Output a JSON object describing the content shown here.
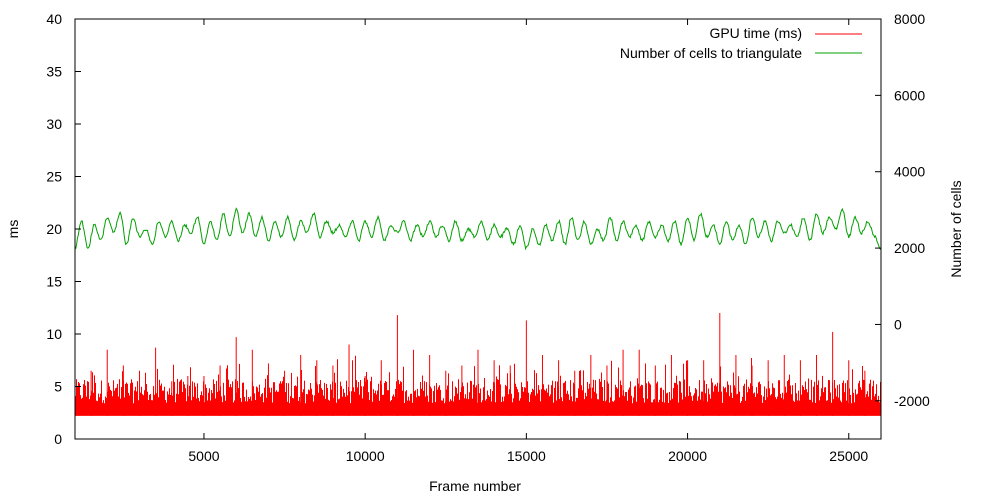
{
  "chart_data": {
    "type": "line",
    "title": "",
    "xlabel": "Frame number",
    "ylabel_left": "ms",
    "ylabel_right": "Number of cells",
    "xlim": [
      1000,
      26000
    ],
    "ylim_left": [
      0,
      40
    ],
    "ylim_right": [
      -3000,
      8000
    ],
    "x_ticks": [
      5000,
      10000,
      15000,
      20000,
      25000
    ],
    "y_ticks_left": [
      0,
      5,
      10,
      15,
      20,
      25,
      30,
      35,
      40
    ],
    "y_ticks_right": [
      -2000,
      0,
      2000,
      4000,
      6000,
      8000
    ],
    "grid": false,
    "legend_position": "top-right",
    "series": [
      {
        "name": "GPU time (ms)",
        "color": "#ff0000",
        "axis": "left",
        "baseline_ms": 2.2,
        "typical_upper_ms": 5.5,
        "x": [
          1000,
          1500,
          2000,
          2500,
          3000,
          3500,
          4000,
          4500,
          5000,
          5500,
          6000,
          6500,
          7000,
          7500,
          8000,
          8500,
          9000,
          9500,
          10000,
          10500,
          11000,
          11500,
          12000,
          12500,
          13000,
          13500,
          14000,
          14500,
          15000,
          15500,
          16000,
          16500,
          17000,
          17500,
          18000,
          18500,
          19000,
          19500,
          20000,
          20500,
          21000,
          21500,
          22000,
          22500,
          23000,
          23500,
          24000,
          24500,
          25000,
          25500,
          26000
        ],
        "y": [
          5.5,
          6.5,
          8.5,
          7.0,
          6.5,
          8.7,
          5.5,
          6.0,
          6.0,
          7.0,
          9.7,
          8.5,
          7.2,
          6.5,
          8.0,
          7.5,
          7.0,
          9.0,
          6.0,
          7.5,
          11.8,
          8.5,
          8.0,
          6.5,
          7.0,
          8.5,
          7.5,
          7.0,
          11.3,
          8.0,
          7.5,
          6.5,
          8.0,
          7.0,
          8.5,
          8.5,
          7.0,
          8.0,
          7.5,
          7.5,
          12.0,
          8.0,
          7.0,
          7.5,
          8.0,
          7.5,
          8.0,
          10.2,
          7.5,
          6.5,
          6.0
        ]
      },
      {
        "name": "Number of cells to triangulate",
        "color": "#00a000",
        "axis": "right",
        "x": [
          1000,
          1200,
          1400,
          1600,
          1800,
          2000,
          2200,
          2400,
          2600,
          2800,
          3000,
          3200,
          3400,
          3600,
          3800,
          4000,
          4200,
          4400,
          4600,
          4800,
          5000,
          5200,
          5400,
          5600,
          5800,
          6000,
          6200,
          6400,
          6600,
          6800,
          7000,
          7200,
          7400,
          7600,
          7800,
          8000,
          8200,
          8400,
          8600,
          8800,
          9000,
          9200,
          9400,
          9600,
          9800,
          10000,
          10200,
          10400,
          10600,
          10800,
          11000,
          11200,
          11400,
          11600,
          11800,
          12000,
          12200,
          12400,
          12600,
          12800,
          13000,
          13200,
          13400,
          13600,
          13800,
          14000,
          14200,
          14400,
          14600,
          14800,
          15000,
          15200,
          15400,
          15600,
          15800,
          16000,
          16200,
          16400,
          16600,
          16800,
          17000,
          17200,
          17400,
          17600,
          17800,
          18000,
          18200,
          18400,
          18600,
          18800,
          19000,
          19200,
          19400,
          19600,
          19800,
          20000,
          20200,
          20400,
          20600,
          20800,
          21000,
          21200,
          21400,
          21600,
          21800,
          22000,
          22200,
          22400,
          22600,
          22800,
          23000,
          23200,
          23400,
          23600,
          23800,
          24000,
          24200,
          24400,
          24600,
          24800,
          25000,
          25200,
          25400,
          25600,
          25800,
          26000
        ],
        "y": [
          2000,
          2700,
          2000,
          2600,
          2200,
          2800,
          2400,
          2900,
          2100,
          2800,
          2300,
          2500,
          2100,
          2700,
          2300,
          2700,
          2200,
          2600,
          2400,
          2800,
          2100,
          2700,
          2200,
          2900,
          2300,
          3000,
          2400,
          2900,
          2300,
          2800,
          2200,
          2700,
          2300,
          2800,
          2200,
          2700,
          2400,
          2900,
          2300,
          2700,
          2400,
          2600,
          2300,
          2700,
          2200,
          2700,
          2300,
          2800,
          2200,
          2600,
          2400,
          2700,
          2200,
          2600,
          2300,
          2700,
          2300,
          2600,
          2200,
          2700,
          2200,
          2500,
          2300,
          2700,
          2200,
          2600,
          2300,
          2500,
          2100,
          2600,
          2000,
          2500,
          2100,
          2600,
          2200,
          2700,
          2100,
          2800,
          2200,
          2700,
          2100,
          2500,
          2200,
          2800,
          2200,
          2700,
          2300,
          2600,
          2200,
          2700,
          2300,
          2600,
          2200,
          2700,
          2100,
          2800,
          2200,
          2900,
          2300,
          2600,
          2100,
          2700,
          2200,
          2600,
          2100,
          2800,
          2300,
          2700,
          2200,
          2700,
          2400,
          2600,
          2300,
          2800,
          2200,
          2900,
          2400,
          2800,
          2500,
          3000,
          2300,
          2800,
          2400,
          2700,
          2300,
          2000
        ]
      }
    ]
  }
}
